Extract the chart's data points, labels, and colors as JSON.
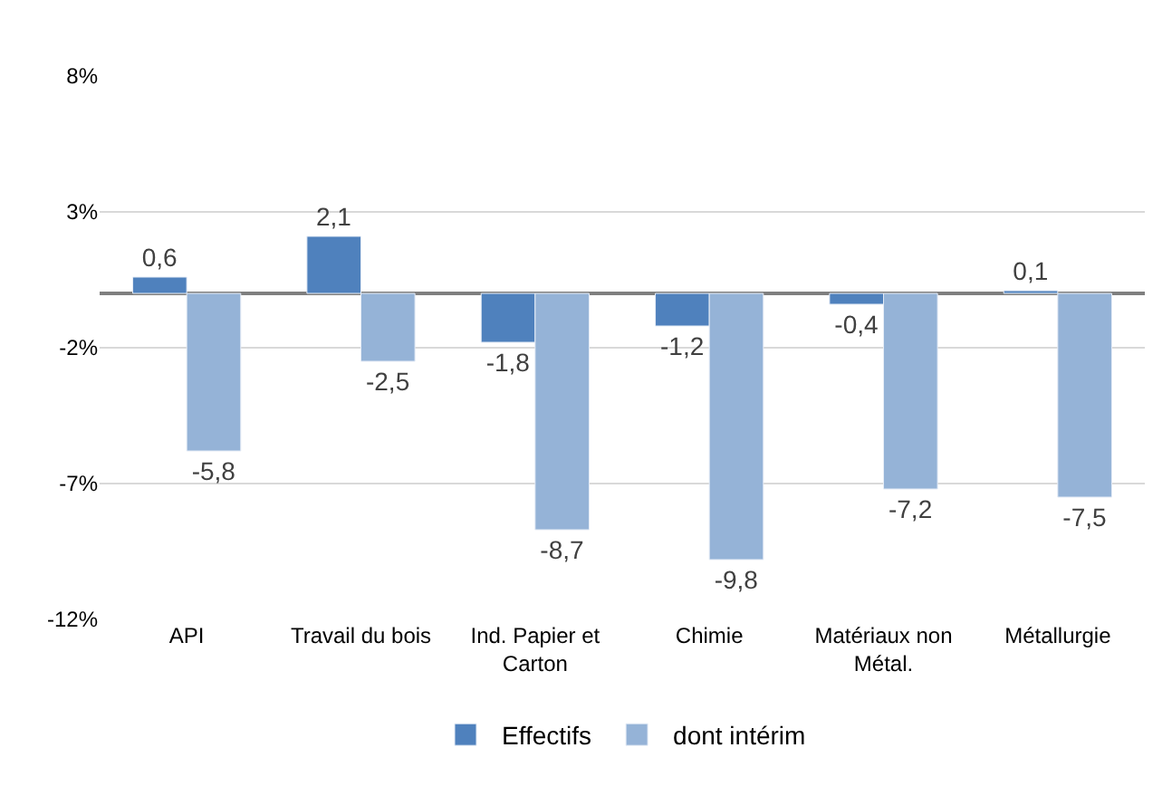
{
  "chart_data": {
    "type": "bar",
    "categories": [
      "API",
      "Travail du bois",
      "Ind. Papier et\nCarton",
      "Chimie",
      "Matériaux non\nMétal.",
      "Métallurgie"
    ],
    "series": [
      {
        "name": "Effectifs",
        "color": "#4f81bd",
        "values": [
          0.6,
          2.1,
          -1.8,
          -1.2,
          -0.4,
          0.1
        ],
        "value_labels": [
          "0,6",
          "2,1",
          "-1,8",
          "-1,2",
          "-0,4",
          "0,1"
        ]
      },
      {
        "name": "dont intérim",
        "color": "#95b3d7",
        "values": [
          -5.8,
          -2.5,
          -8.7,
          -9.8,
          -7.2,
          -7.5
        ],
        "value_labels": [
          "-5,8",
          "-2,5",
          "-8,7",
          "-9,8",
          "-7,2",
          "-7,5"
        ]
      }
    ],
    "ylim": [
      -12,
      8
    ],
    "yticks": [
      {
        "value": -12,
        "label": "-12%"
      },
      {
        "value": -7,
        "label": "-7%"
      },
      {
        "value": -2,
        "label": "-2%"
      },
      {
        "value": 3,
        "label": "3%"
      },
      {
        "value": 8,
        "label": "8%"
      }
    ],
    "grid": "y",
    "legend": "bottom"
  }
}
